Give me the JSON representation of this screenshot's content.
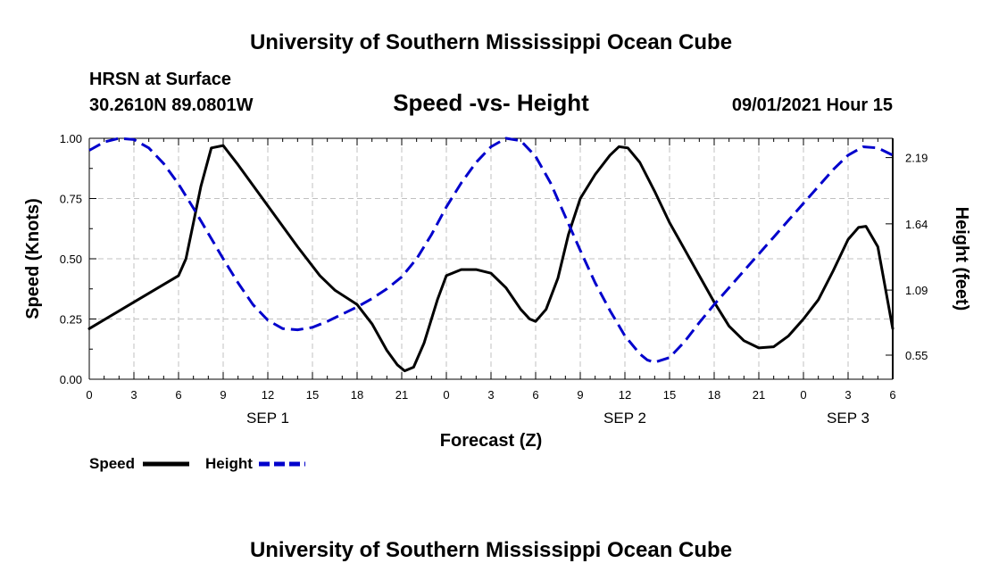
{
  "header": {
    "title_top": "University of Southern Mississippi Ocean Cube",
    "station": "HRSN at Surface",
    "coords": "30.2610N  89.0801W",
    "subtitle": "Speed -vs- Height",
    "datetime": "09/01/2021 Hour 15",
    "title_bottom": "University of Southern Mississippi Ocean Cube"
  },
  "legend": {
    "speed_label": "Speed",
    "height_label": "Height"
  },
  "colors": {
    "speed": "#000000",
    "height": "#0000cc",
    "grid": "#c0c0c0"
  },
  "chart_data": {
    "type": "line",
    "title": "Speed -vs- Height",
    "xlabel": "Forecast (Z)",
    "ylabel": "Speed (Knots)",
    "y2label": "Height (feet)",
    "x_hours_range": [
      0,
      54
    ],
    "x_tick_labels": [
      "0",
      "3",
      "6",
      "9",
      "12",
      "15",
      "18",
      "21",
      "0",
      "3",
      "6",
      "9",
      "12",
      "15",
      "18",
      "21",
      "0",
      "3",
      "6"
    ],
    "day_labels": [
      {
        "label": "SEP 1",
        "x_hours": 12
      },
      {
        "label": "SEP 2",
        "x_hours": 36
      },
      {
        "label": "SEP 3",
        "x_hours": 51
      }
    ],
    "y_left": {
      "range": [
        0,
        1.0
      ],
      "ticks": [
        "0.00",
        "0.25",
        "0.50",
        "0.75",
        "1.00"
      ]
    },
    "y_right": {
      "range": [
        0.35,
        2.35
      ],
      "ticks": [
        0.55,
        1.09,
        1.64,
        2.19
      ],
      "tick_labels": [
        "0.55",
        "1.09",
        "1.64",
        "2.19"
      ]
    },
    "grid": true,
    "series": [
      {
        "name": "Speed",
        "axis": "left",
        "style": "solid",
        "points": [
          [
            0,
            0.21
          ],
          [
            3,
            0.32
          ],
          [
            6,
            0.43
          ],
          [
            6.5,
            0.5
          ],
          [
            7,
            0.65
          ],
          [
            7.5,
            0.8
          ],
          [
            8.2,
            0.96
          ],
          [
            9,
            0.97
          ],
          [
            10,
            0.89
          ],
          [
            12,
            0.72
          ],
          [
            14,
            0.55
          ],
          [
            15.5,
            0.43
          ],
          [
            16.5,
            0.37
          ],
          [
            18,
            0.31
          ],
          [
            19,
            0.23
          ],
          [
            20,
            0.12
          ],
          [
            20.7,
            0.06
          ],
          [
            21.2,
            0.035
          ],
          [
            21.8,
            0.05
          ],
          [
            22.5,
            0.15
          ],
          [
            23.4,
            0.33
          ],
          [
            24,
            0.43
          ],
          [
            25,
            0.455
          ],
          [
            26,
            0.455
          ],
          [
            27,
            0.44
          ],
          [
            28,
            0.38
          ],
          [
            29,
            0.29
          ],
          [
            29.6,
            0.25
          ],
          [
            30,
            0.24
          ],
          [
            30.7,
            0.29
          ],
          [
            31.5,
            0.42
          ],
          [
            32.2,
            0.6
          ],
          [
            33,
            0.75
          ],
          [
            34,
            0.85
          ],
          [
            35,
            0.93
          ],
          [
            35.6,
            0.965
          ],
          [
            36.2,
            0.96
          ],
          [
            37,
            0.9
          ],
          [
            38,
            0.78
          ],
          [
            39,
            0.65
          ],
          [
            40,
            0.54
          ],
          [
            41,
            0.43
          ],
          [
            42,
            0.32
          ],
          [
            43,
            0.22
          ],
          [
            44,
            0.16
          ],
          [
            45,
            0.13
          ],
          [
            46,
            0.135
          ],
          [
            47,
            0.18
          ],
          [
            48,
            0.25
          ],
          [
            49,
            0.33
          ],
          [
            50,
            0.45
          ],
          [
            51,
            0.58
          ],
          [
            51.7,
            0.63
          ],
          [
            52.2,
            0.635
          ],
          [
            53,
            0.55
          ],
          [
            54,
            0.21
          ]
        ]
      },
      {
        "name": "Height",
        "axis": "right",
        "style": "dashed",
        "points": [
          [
            0,
            2.25
          ],
          [
            1,
            2.32
          ],
          [
            2,
            2.35
          ],
          [
            3,
            2.34
          ],
          [
            4,
            2.27
          ],
          [
            5,
            2.14
          ],
          [
            6,
            1.97
          ],
          [
            7,
            1.77
          ],
          [
            8,
            1.56
          ],
          [
            9,
            1.35
          ],
          [
            10,
            1.15
          ],
          [
            11,
            0.97
          ],
          [
            12,
            0.84
          ],
          [
            13,
            0.77
          ],
          [
            14,
            0.76
          ],
          [
            15,
            0.78
          ],
          [
            16,
            0.83
          ],
          [
            17,
            0.89
          ],
          [
            18,
            0.95
          ],
          [
            19,
            1.02
          ],
          [
            20,
            1.1
          ],
          [
            21,
            1.2
          ],
          [
            22,
            1.35
          ],
          [
            23,
            1.55
          ],
          [
            24,
            1.78
          ],
          [
            25,
            1.98
          ],
          [
            26,
            2.15
          ],
          [
            27,
            2.28
          ],
          [
            28,
            2.35
          ],
          [
            29,
            2.33
          ],
          [
            30,
            2.2
          ],
          [
            31,
            1.98
          ],
          [
            32,
            1.7
          ],
          [
            33,
            1.42
          ],
          [
            34,
            1.15
          ],
          [
            35,
            0.92
          ],
          [
            36,
            0.71
          ],
          [
            37,
            0.56
          ],
          [
            37.5,
            0.51
          ],
          [
            38,
            0.49
          ],
          [
            39,
            0.53
          ],
          [
            40,
            0.66
          ],
          [
            41,
            0.82
          ],
          [
            42,
            0.97
          ],
          [
            43,
            1.11
          ],
          [
            44,
            1.25
          ],
          [
            45,
            1.39
          ],
          [
            46,
            1.53
          ],
          [
            47,
            1.67
          ],
          [
            48,
            1.81
          ],
          [
            49,
            1.95
          ],
          [
            50,
            2.09
          ],
          [
            51,
            2.21
          ],
          [
            52,
            2.28
          ],
          [
            53,
            2.27
          ],
          [
            54,
            2.21
          ]
        ]
      }
    ]
  }
}
